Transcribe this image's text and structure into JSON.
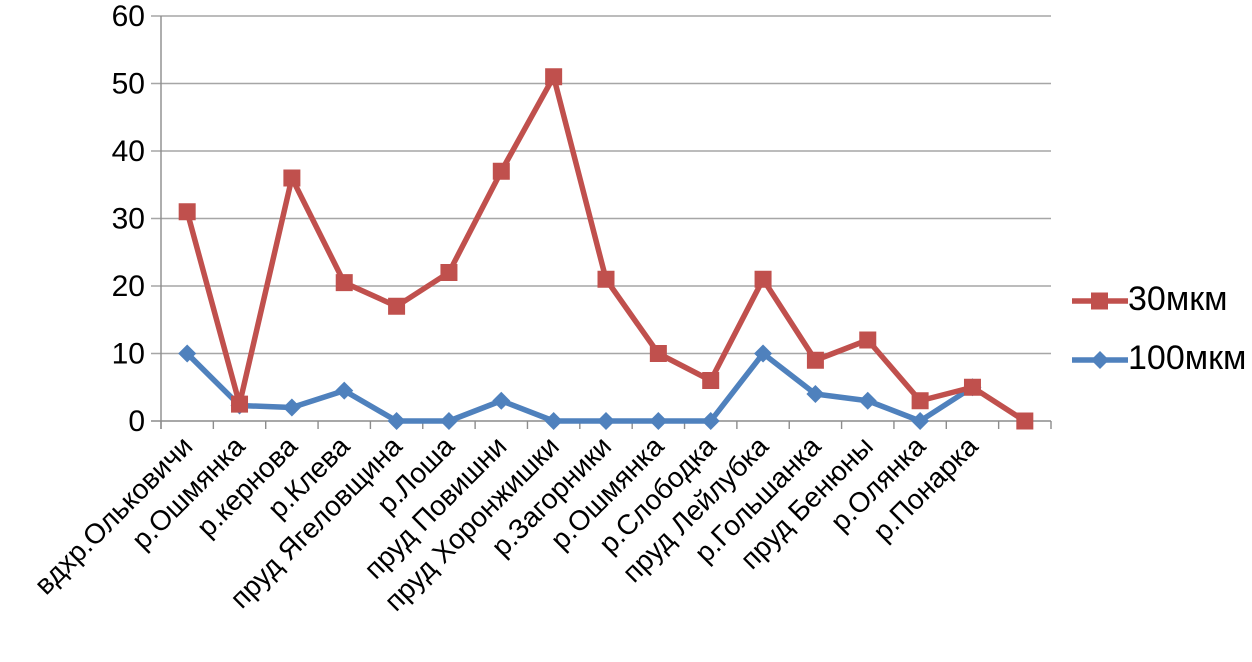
{
  "chart_data": {
    "type": "line",
    "title": "",
    "xlabel": "",
    "ylabel": "",
    "ylim": [
      0,
      60
    ],
    "yticks": [
      0,
      10,
      20,
      30,
      40,
      50,
      60
    ],
    "grid": "horizontal",
    "legend_position": "right",
    "categories": [
      "вдхр.Ольковичи",
      "р.Ошмянка",
      "р.кернова",
      "р.Клева",
      "пруд Ягеловщина",
      "р.Лоша",
      "пруд Повишни",
      "пруд Хоронжишки",
      "р.Загорники",
      "р.Ошмянка",
      "р.Слободка",
      "пруд Лейлубка",
      "р.Гольшанка",
      "пруд Бенюны",
      "р.Олянка",
      "р.Понарка",
      ""
    ],
    "series": [
      {
        "name": "30мкм",
        "marker": "square",
        "color": "#C0504D",
        "values": [
          31,
          2.5,
          36,
          20.5,
          17,
          22,
          37,
          51,
          21,
          10,
          6,
          21,
          9,
          12,
          3,
          5,
          0
        ]
      },
      {
        "name": "100мкм",
        "marker": "diamond",
        "color": "#4F81BD",
        "values": [
          10,
          2.3,
          2,
          4.5,
          0,
          0,
          3,
          0,
          0,
          0,
          0,
          10,
          4,
          3,
          0,
          5,
          null
        ]
      }
    ]
  },
  "colors": {
    "background": "#FFFFFF",
    "gridline": "#A6A6A6",
    "axis": "#8C8C8C",
    "text": "#000000"
  }
}
